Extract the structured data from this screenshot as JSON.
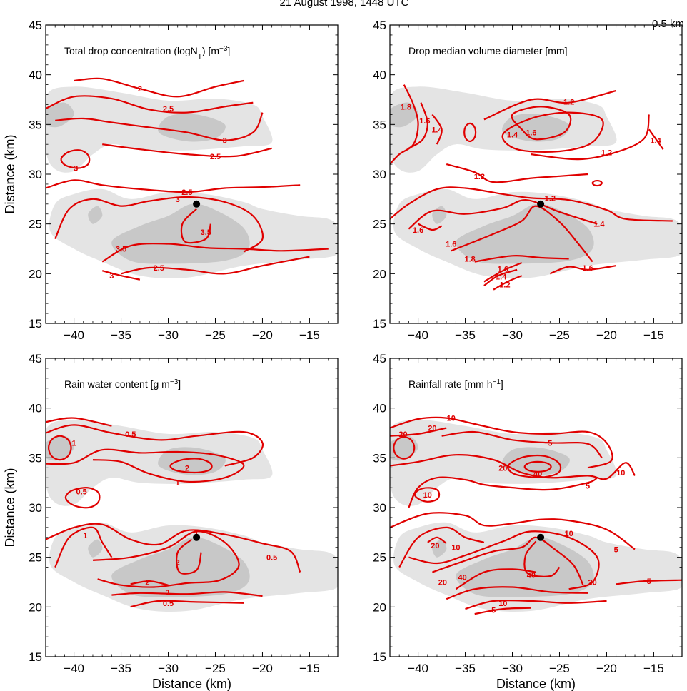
{
  "figure": {
    "title": "21 August 1998, 1448 UTC",
    "height_label": "0.5 km"
  },
  "colors": {
    "contour": "#e00000",
    "light_shade": "#e4e4e4",
    "dark_shade": "#c8c8c8",
    "marker": "#000000"
  },
  "chart_data": [
    {
      "type": "contour",
      "title": "Total drop concentration (logN_T) [m^-3]",
      "xlabel": "",
      "ylabel": "Distance (km)",
      "xlim": [
        -43,
        -12
      ],
      "ylim": [
        15,
        45
      ],
      "xticks": [
        -40,
        -35,
        -30,
        -25,
        -20,
        -15
      ],
      "yticks": [
        15,
        20,
        25,
        30,
        35,
        40,
        45
      ],
      "contour_levels": [
        "2",
        "2.5",
        "3",
        "3.5"
      ],
      "marker": [
        -27,
        27
      ]
    },
    {
      "type": "contour",
      "title": "Drop median volume diameter [mm]",
      "xlabel": "",
      "ylabel": "",
      "xlim": [
        -43,
        -12
      ],
      "ylim": [
        15,
        45
      ],
      "xticks": [
        -40,
        -35,
        -30,
        -25,
        -20,
        -15
      ],
      "yticks": [
        15,
        20,
        25,
        30,
        35,
        40,
        45
      ],
      "contour_levels": [
        "1.2",
        "1.4",
        "1.6",
        "1.8"
      ],
      "marker": [
        -27,
        27
      ]
    },
    {
      "type": "contour",
      "title": "Rain water content [g m^-3]",
      "xlabel": "Distance (km)",
      "ylabel": "Distance (km)",
      "xlim": [
        -43,
        -12
      ],
      "ylim": [
        15,
        45
      ],
      "xticks": [
        -40,
        -35,
        -30,
        -25,
        -20,
        -15
      ],
      "yticks": [
        15,
        20,
        25,
        30,
        35,
        40,
        45
      ],
      "contour_levels": [
        "0.5",
        "1",
        "2"
      ],
      "marker": [
        -27,
        27
      ]
    },
    {
      "type": "contour",
      "title": "Rainfall rate [mm h^-1]",
      "xlabel": "Distance (km)",
      "ylabel": "",
      "xlim": [
        -43,
        -12
      ],
      "ylim": [
        15,
        45
      ],
      "xticks": [
        -40,
        -35,
        -30,
        -25,
        -20,
        -15
      ],
      "yticks": [
        15,
        20,
        25,
        30,
        35,
        40,
        45
      ],
      "contour_levels": [
        "5",
        "10",
        "20",
        "40"
      ],
      "marker": [
        -27,
        27
      ]
    }
  ]
}
